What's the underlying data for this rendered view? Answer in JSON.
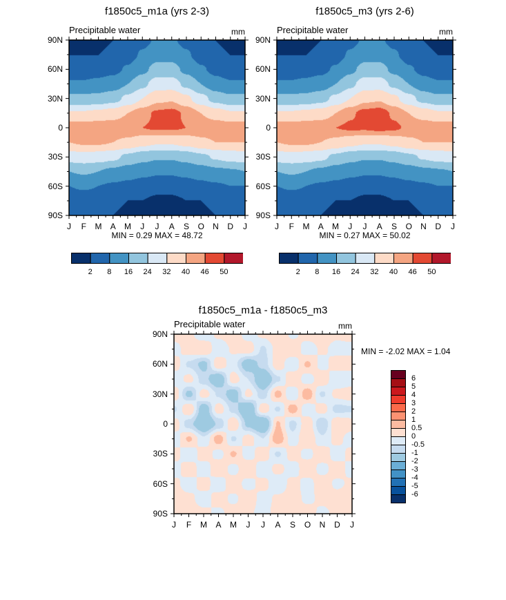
{
  "panels": {
    "m1a": {
      "title": "f1850c5_m1a (yrs 2-3)",
      "field_label": "Precipitable water",
      "units": "mm",
      "stats": "MIN =  0.29 MAX =  48.72"
    },
    "m3": {
      "title": "f1850c5_m3 (yrs 2-6)",
      "field_label": "Precipitable water",
      "units": "mm",
      "stats": "MIN =  0.27 MAX =  50.02"
    },
    "diff": {
      "title": "f1850c5_m1a - f1850c5_m3",
      "field_label": "Precipitable water",
      "units": "mm",
      "stats": "MIN = -2.02 MAX =  1.04"
    }
  },
  "chart_data": [
    {
      "type": "heatmap",
      "title": "f1850c5_m1a (yrs 2-3)",
      "variable": "Precipitable water",
      "units": "mm",
      "x_labels": [
        "J",
        "F",
        "M",
        "A",
        "M",
        "J",
        "J",
        "A",
        "S",
        "O",
        "N",
        "D",
        "J"
      ],
      "y_labels": [
        "90N",
        "60N",
        "30N",
        "0",
        "30S",
        "60S",
        "90S"
      ],
      "grid_lats": [
        90,
        75,
        60,
        45,
        30,
        15,
        0,
        -15,
        -30,
        -45,
        -60,
        -75,
        -90
      ],
      "values": [
        [
          1,
          1,
          1,
          2,
          3,
          6,
          9,
          9,
          6,
          3,
          2,
          1,
          1
        ],
        [
          2,
          2,
          2,
          3,
          5,
          9,
          13,
          13,
          9,
          5,
          3,
          2,
          2
        ],
        [
          4,
          4,
          5,
          6,
          9,
          14,
          19,
          19,
          14,
          9,
          6,
          4,
          4
        ],
        [
          9,
          9,
          10,
          12,
          16,
          22,
          28,
          28,
          22,
          16,
          11,
          9,
          9
        ],
        [
          18,
          18,
          19,
          21,
          26,
          32,
          38,
          39,
          34,
          27,
          21,
          18,
          18
        ],
        [
          33,
          33,
          34,
          36,
          40,
          44,
          47,
          48,
          45,
          40,
          36,
          33,
          33
        ],
        [
          44,
          44,
          45,
          45,
          46,
          46,
          47,
          47,
          46,
          45,
          45,
          44,
          44
        ],
        [
          40,
          41,
          41,
          40,
          38,
          35,
          33,
          33,
          35,
          38,
          40,
          40,
          40
        ],
        [
          28,
          29,
          28,
          26,
          22,
          19,
          17,
          17,
          19,
          22,
          25,
          27,
          28
        ],
        [
          16,
          17,
          16,
          14,
          12,
          10,
          9,
          9,
          10,
          12,
          14,
          15,
          16
        ],
        [
          8,
          9,
          8,
          7,
          6,
          5,
          4,
          4,
          5,
          6,
          7,
          8,
          8
        ],
        [
          4,
          4,
          4,
          3,
          2,
          2,
          1,
          1,
          2,
          2,
          3,
          4,
          4
        ],
        [
          2,
          3,
          2,
          2,
          1,
          1,
          1,
          1,
          1,
          1,
          2,
          2,
          2
        ]
      ],
      "levels": [
        2,
        8,
        16,
        24,
        32,
        40,
        46,
        50
      ],
      "colors": [
        "#08306b",
        "#2166ac",
        "#4393c3",
        "#92c5de",
        "#d9e8f5",
        "#fddbc7",
        "#f4a582",
        "#e34933",
        "#b2182b"
      ],
      "colorbar_labels": [
        "2",
        "8",
        "16",
        "24",
        "32",
        "40",
        "46",
        "50"
      ],
      "colorbar_orientation": "horizontal",
      "min": 0.29,
      "max": 48.72
    },
    {
      "type": "heatmap",
      "title": "f1850c5_m3 (yrs 2-6)",
      "variable": "Precipitable water",
      "units": "mm",
      "x_labels": [
        "J",
        "F",
        "M",
        "A",
        "M",
        "J",
        "J",
        "A",
        "S",
        "O",
        "N",
        "D",
        "J"
      ],
      "y_labels": [
        "90N",
        "60N",
        "30N",
        "0",
        "30S",
        "60S",
        "90S"
      ],
      "grid_lats": [
        90,
        75,
        60,
        45,
        30,
        15,
        0,
        -15,
        -30,
        -45,
        -60,
        -75,
        -90
      ],
      "values": [
        [
          1,
          1,
          1,
          2,
          3,
          6,
          9,
          9,
          6,
          3,
          2,
          1,
          1
        ],
        [
          2,
          2,
          2,
          3,
          5,
          9,
          13,
          13,
          9,
          5,
          3,
          2,
          2
        ],
        [
          4,
          4,
          5,
          6,
          9,
          14,
          19,
          19,
          14,
          9,
          6,
          4,
          4
        ],
        [
          9,
          9,
          10,
          12,
          16,
          22,
          28,
          28,
          22,
          16,
          11,
          9,
          9
        ],
        [
          18,
          18,
          19,
          21,
          26,
          32,
          38,
          39,
          34,
          27,
          21,
          18,
          18
        ],
        [
          33,
          33,
          34,
          36,
          40,
          45,
          48,
          49,
          45,
          40,
          36,
          33,
          33
        ],
        [
          44,
          44,
          45,
          45,
          46,
          47,
          47,
          48,
          47,
          45,
          45,
          44,
          44
        ],
        [
          40,
          41,
          41,
          40,
          38,
          35,
          33,
          33,
          35,
          38,
          40,
          40,
          40
        ],
        [
          28,
          29,
          28,
          26,
          22,
          19,
          17,
          17,
          19,
          22,
          25,
          27,
          28
        ],
        [
          16,
          17,
          16,
          14,
          12,
          10,
          9,
          9,
          10,
          12,
          14,
          15,
          16
        ],
        [
          8,
          9,
          8,
          7,
          6,
          5,
          4,
          4,
          5,
          6,
          7,
          8,
          8
        ],
        [
          4,
          4,
          4,
          3,
          2,
          2,
          1,
          1,
          2,
          2,
          3,
          4,
          4
        ],
        [
          2,
          3,
          2,
          2,
          1,
          1,
          1,
          1,
          1,
          1,
          2,
          2,
          2
        ]
      ],
      "levels": [
        2,
        8,
        16,
        24,
        32,
        40,
        46,
        50
      ],
      "colors": [
        "#08306b",
        "#2166ac",
        "#4393c3",
        "#92c5de",
        "#d9e8f5",
        "#fddbc7",
        "#f4a582",
        "#e34933",
        "#b2182b"
      ],
      "colorbar_labels": [
        "2",
        "8",
        "16",
        "24",
        "32",
        "40",
        "46",
        "50"
      ],
      "colorbar_orientation": "horizontal",
      "min": 0.27,
      "max": 50.02
    },
    {
      "type": "heatmap",
      "title": "f1850c5_m1a - f1850c5_m3",
      "variable": "Precipitable water",
      "units": "mm",
      "x_labels": [
        "J",
        "F",
        "M",
        "A",
        "M",
        "J",
        "J",
        "A",
        "S",
        "O",
        "N",
        "D",
        "J"
      ],
      "y_labels": [
        "90N",
        "60N",
        "30N",
        "0",
        "30S",
        "60S",
        "90S"
      ],
      "grid_lats": [
        90,
        75,
        60,
        45,
        30,
        15,
        0,
        -15,
        -30,
        -45,
        -60,
        -75,
        -90
      ],
      "values": [
        [
          0.2,
          0.1,
          -0.3,
          0.1,
          0.3,
          -0.2,
          0.1,
          0.4,
          -0.1,
          0.2,
          0.3,
          0.1,
          0.2
        ],
        [
          -0.2,
          0.3,
          0.5,
          -0.4,
          0.1,
          0.3,
          -0.6,
          0.2,
          0.4,
          -0.3,
          0.1,
          -0.2,
          -0.2
        ],
        [
          0.3,
          -0.6,
          -1.2,
          0.4,
          -0.3,
          -1.5,
          -0.8,
          0.3,
          -0.4,
          0.6,
          -0.2,
          0.3,
          0.3
        ],
        [
          -0.4,
          0.2,
          -0.8,
          -1.6,
          0.3,
          -0.5,
          -1.8,
          -0.6,
          0.5,
          -0.3,
          0.4,
          -0.5,
          -0.4
        ],
        [
          0.4,
          -1.2,
          0.3,
          -0.6,
          -1.4,
          0.2,
          -0.8,
          0.7,
          -0.5,
          0.9,
          -0.6,
          0.2,
          0.4
        ],
        [
          -0.6,
          0.5,
          -1.5,
          0.3,
          -0.7,
          -1.9,
          0.4,
          -0.6,
          0.8,
          -0.4,
          0.3,
          -0.7,
          -0.6
        ],
        [
          0.3,
          -0.8,
          -1.8,
          -0.9,
          0.5,
          -1.2,
          -2.0,
          0.6,
          -0.7,
          0.4,
          -1.0,
          0.5,
          0.3
        ],
        [
          -0.3,
          0.6,
          -0.4,
          0.8,
          -0.6,
          0.3,
          -0.5,
          0.9,
          -0.3,
          0.5,
          -0.4,
          0.2,
          -0.3
        ],
        [
          0.2,
          -0.4,
          0.3,
          -0.2,
          0.6,
          -0.3,
          0.4,
          -0.6,
          0.3,
          -0.2,
          0.4,
          -0.3,
          0.2
        ],
        [
          -0.2,
          0.3,
          -0.3,
          0.4,
          -0.2,
          0.5,
          -0.4,
          0.2,
          -0.3,
          0.4,
          -0.2,
          0.3,
          -0.2
        ],
        [
          0.1,
          -0.2,
          0.2,
          -0.3,
          0.3,
          -0.2,
          0.2,
          -0.4,
          0.2,
          -0.2,
          0.3,
          -0.1,
          0.1
        ],
        [
          0.2,
          0.1,
          -0.2,
          0.2,
          -0.1,
          0.3,
          -0.2,
          0.1,
          0.2,
          -0.1,
          0.1,
          0.2,
          0.2
        ],
        [
          0.1,
          0.2,
          0.1,
          -0.1,
          0.2,
          0.1,
          -0.2,
          0.2,
          0.1,
          0.2,
          -0.1,
          0.1,
          0.1
        ]
      ],
      "levels": [
        -6,
        -5,
        -4,
        -3,
        -2,
        -1,
        -0.5,
        0,
        0.5,
        1,
        2,
        3,
        4,
        5,
        6
      ],
      "colors": [
        "#08306b",
        "#08519c",
        "#2171b5",
        "#4292c6",
        "#6baed6",
        "#9ecae1",
        "#c6dbef",
        "#deebf7",
        "#fee0d2",
        "#fcbba1",
        "#fc9272",
        "#fb6a4a",
        "#ef3b2c",
        "#cb181d",
        "#a50f15",
        "#67001f"
      ],
      "colorbar_labels": [
        "6",
        "5",
        "4",
        "3",
        "2",
        "1",
        "0.5",
        "0",
        "-0.5",
        "-1",
        "-2",
        "-3",
        "-4",
        "-5",
        "-6"
      ],
      "colorbar_orientation": "vertical",
      "min": -2.02,
      "max": 1.04
    }
  ]
}
